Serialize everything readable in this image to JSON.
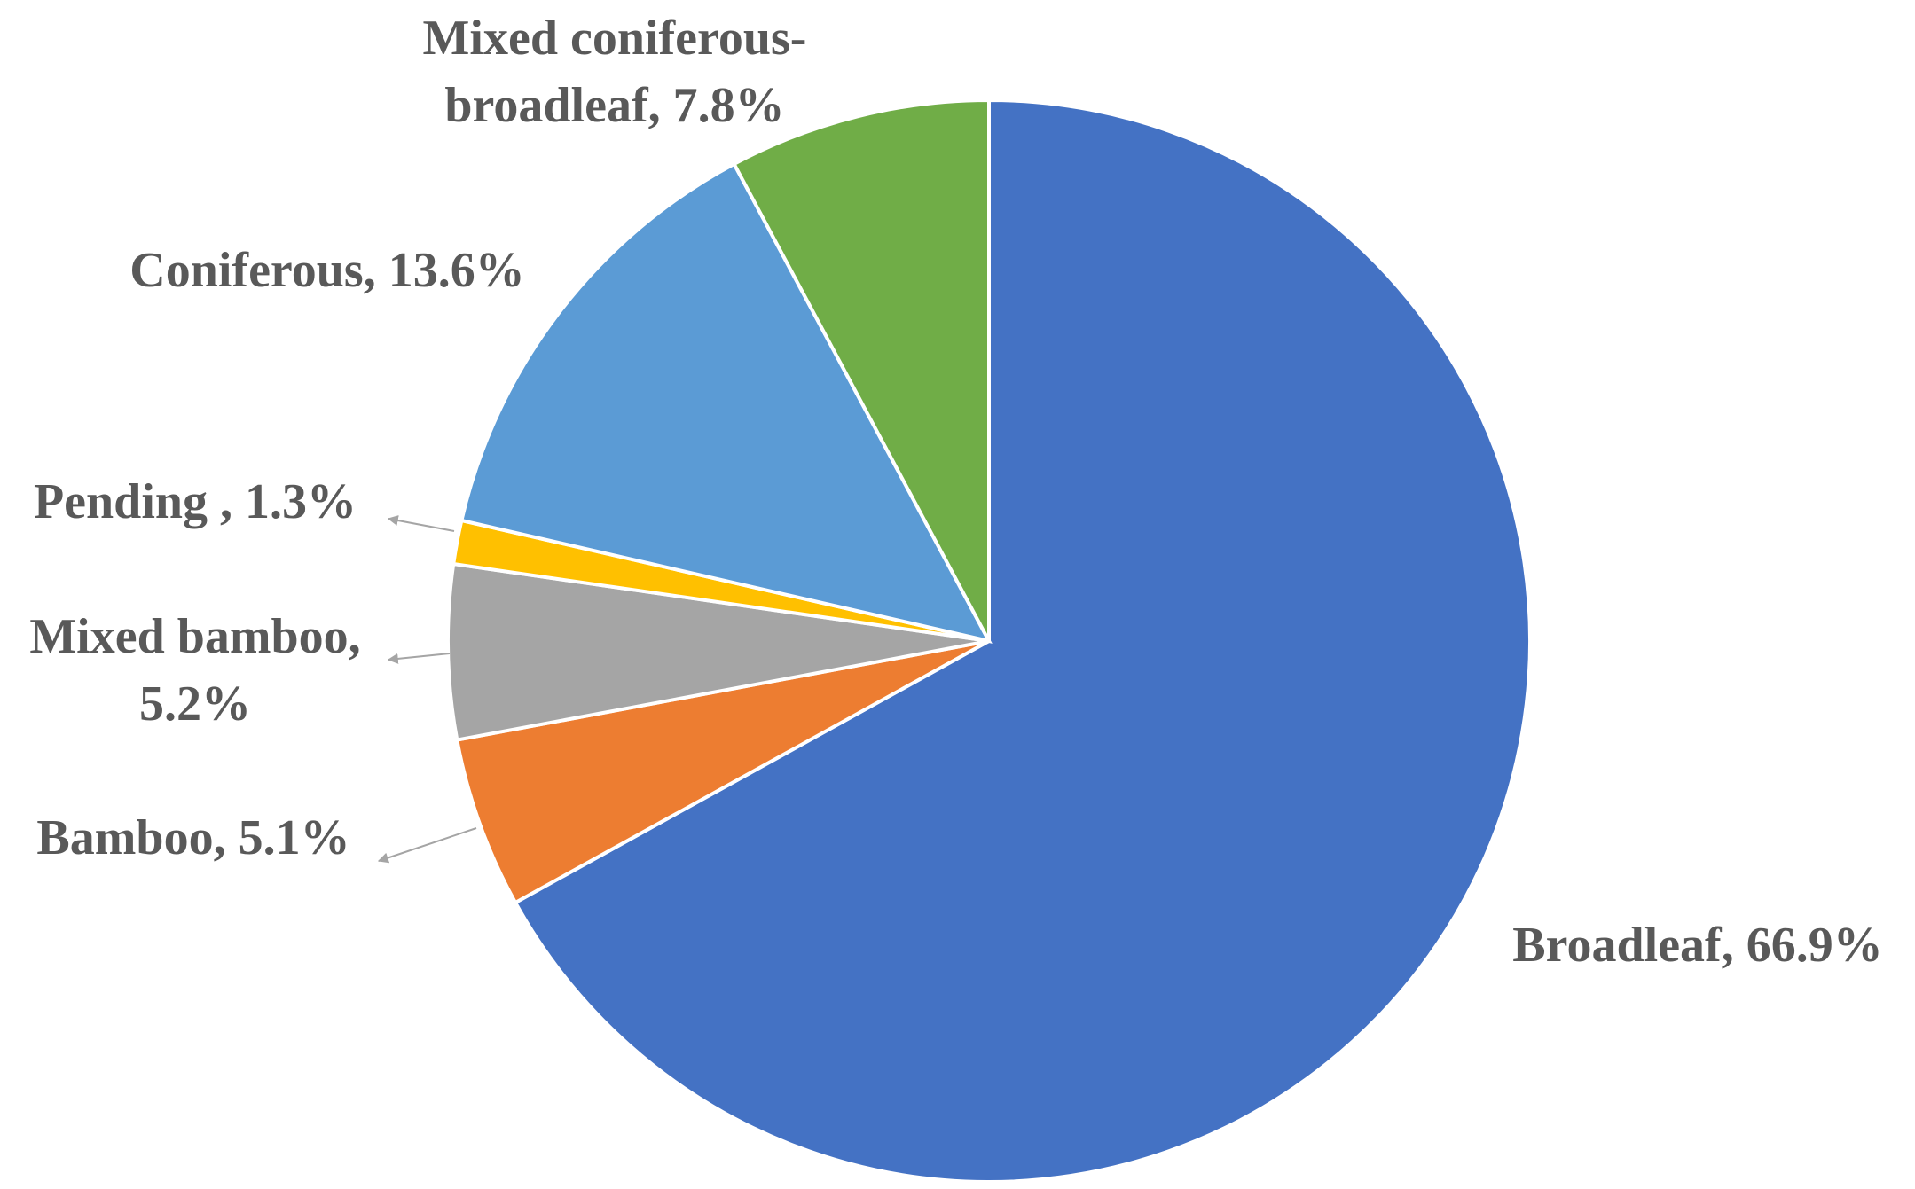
{
  "chart_data": {
    "type": "pie",
    "values": [
      66.9,
      5.1,
      5.2,
      1.3,
      13.6,
      7.8
    ],
    "value_labels": [
      "Broadleaf, 66.9%",
      "Bamboo, 5.1%",
      "Mixed bamboo, 5.2%",
      "Pending , 1.3%",
      "Coniferous, 13.6%",
      "Mixed coniferous-broadleaf, 7.8%"
    ],
    "colors": [
      "#4472c4",
      "#ed7d31",
      "#a5a5a5",
      "#ffc000",
      "#5b9bd5",
      "#70ad47"
    ]
  }
}
